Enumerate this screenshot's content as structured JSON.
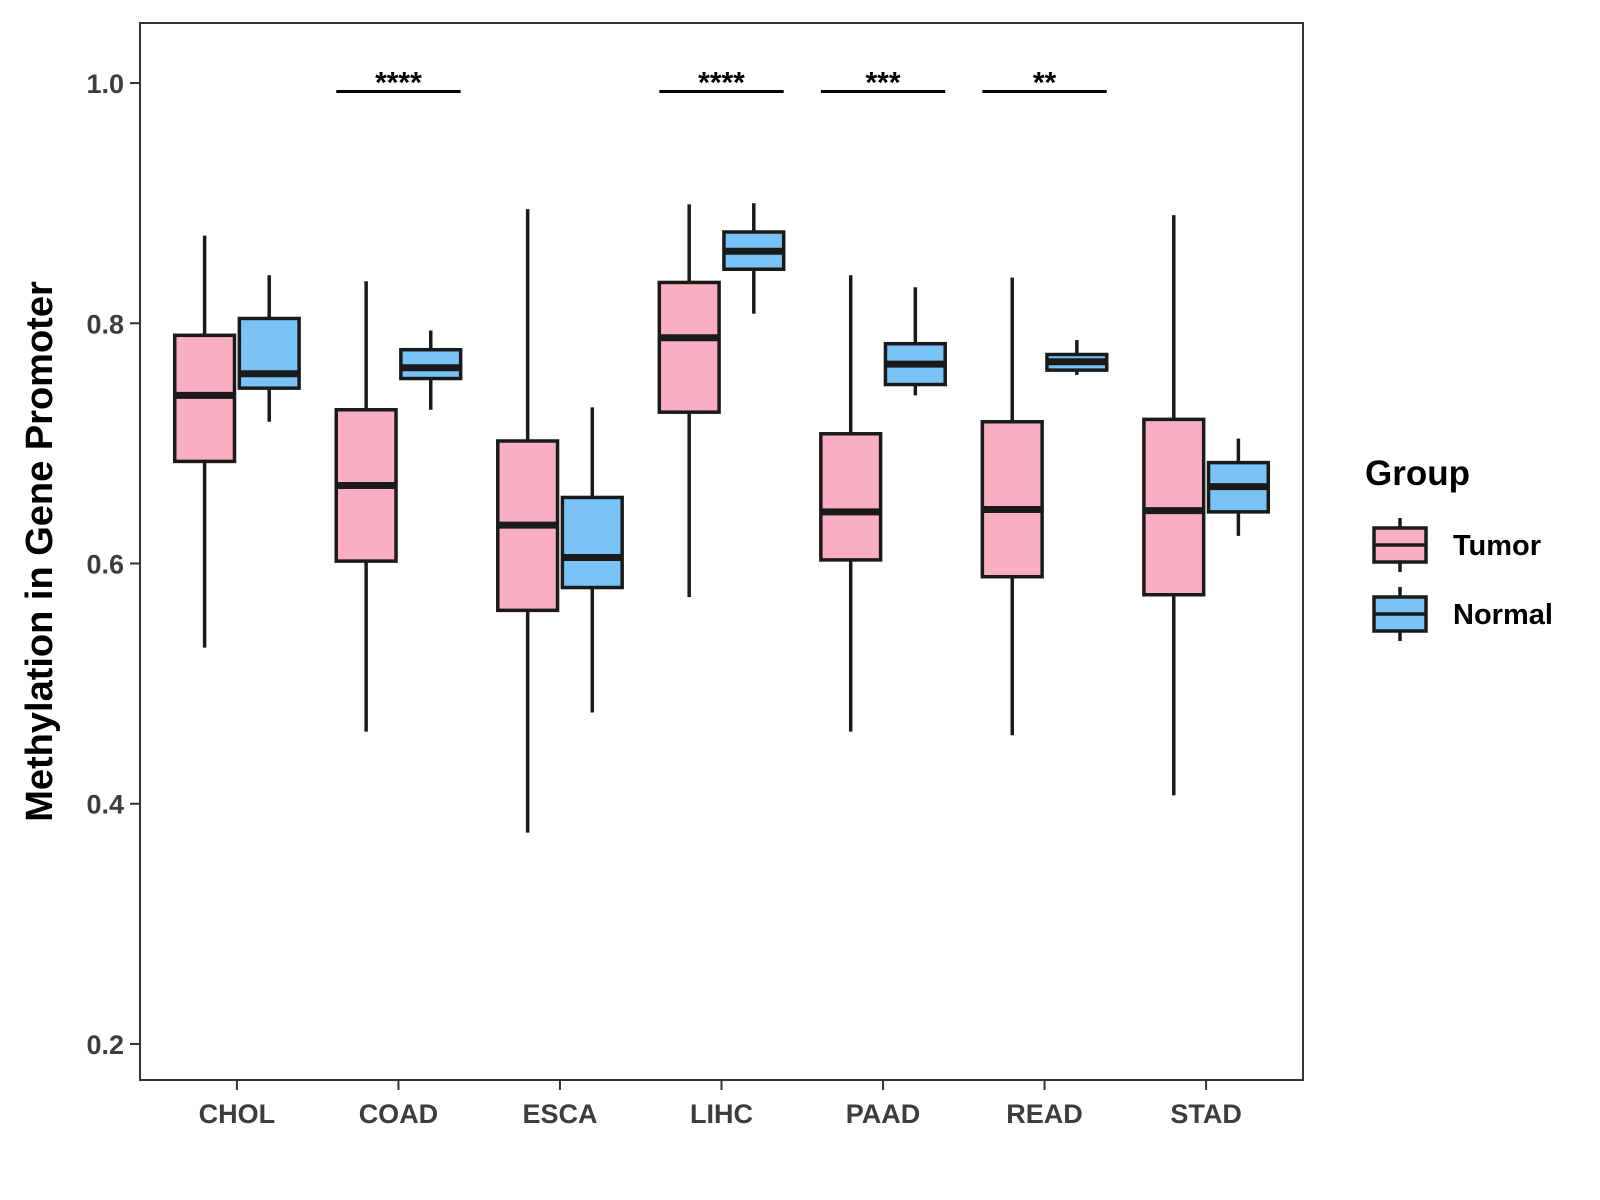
{
  "chart_data": {
    "type": "boxplot",
    "title": "",
    "xlabel": "",
    "ylabel": "Methylation in Gene Promoter",
    "ylim": [
      0.17,
      1.05
    ],
    "yticks": [
      0.2,
      0.4,
      0.6,
      0.8,
      1.0
    ],
    "ytick_labels": [
      "0.2",
      "0.4",
      "0.6",
      "0.8",
      "1.0"
    ],
    "categories": [
      "CHOL",
      "COAD",
      "ESCA",
      "LIHC",
      "PAAD",
      "READ",
      "STAD"
    ],
    "grid": false,
    "legend": {
      "title": "Group",
      "position": "right",
      "entries": [
        {
          "name": "Tumor",
          "color": "#F9AFC1"
        },
        {
          "name": "Normal",
          "color": "#7AC3F7"
        }
      ]
    },
    "series": [
      {
        "name": "Tumor",
        "color": "#F9AFC1",
        "boxes": [
          {
            "whisker_low": 0.53,
            "q1": 0.685,
            "median": 0.74,
            "q3": 0.79,
            "whisker_high": 0.873
          },
          {
            "whisker_low": 0.46,
            "q1": 0.602,
            "median": 0.665,
            "q3": 0.728,
            "whisker_high": 0.835
          },
          {
            "whisker_low": 0.376,
            "q1": 0.561,
            "median": 0.632,
            "q3": 0.702,
            "whisker_high": 0.895
          },
          {
            "whisker_low": 0.572,
            "q1": 0.726,
            "median": 0.788,
            "q3": 0.834,
            "whisker_high": 0.899
          },
          {
            "whisker_low": 0.46,
            "q1": 0.603,
            "median": 0.643,
            "q3": 0.708,
            "whisker_high": 0.84
          },
          {
            "whisker_low": 0.457,
            "q1": 0.589,
            "median": 0.645,
            "q3": 0.718,
            "whisker_high": 0.838
          },
          {
            "whisker_low": 0.407,
            "q1": 0.574,
            "median": 0.644,
            "q3": 0.72,
            "whisker_high": 0.89
          }
        ]
      },
      {
        "name": "Normal",
        "color": "#7AC3F7",
        "boxes": [
          {
            "whisker_low": 0.718,
            "q1": 0.746,
            "median": 0.758,
            "q3": 0.804,
            "whisker_high": 0.84
          },
          {
            "whisker_low": 0.728,
            "q1": 0.754,
            "median": 0.763,
            "q3": 0.778,
            "whisker_high": 0.794
          },
          {
            "whisker_low": 0.476,
            "q1": 0.58,
            "median": 0.605,
            "q3": 0.655,
            "whisker_high": 0.73
          },
          {
            "whisker_low": 0.808,
            "q1": 0.845,
            "median": 0.86,
            "q3": 0.876,
            "whisker_high": 0.9
          },
          {
            "whisker_low": 0.74,
            "q1": 0.749,
            "median": 0.766,
            "q3": 0.783,
            "whisker_high": 0.83
          },
          {
            "whisker_low": 0.757,
            "q1": 0.761,
            "median": 0.768,
            "q3": 0.774,
            "whisker_high": 0.786
          },
          {
            "whisker_low": 0.623,
            "q1": 0.643,
            "median": 0.664,
            "q3": 0.684,
            "whisker_high": 0.704
          }
        ]
      }
    ],
    "significance": [
      {
        "category": "COAD",
        "label": "****",
        "y": 0.993
      },
      {
        "category": "LIHC",
        "label": "****",
        "y": 0.993
      },
      {
        "category": "PAAD",
        "label": "***",
        "y": 0.993
      },
      {
        "category": "READ",
        "label": "**",
        "y": 0.993
      }
    ]
  }
}
